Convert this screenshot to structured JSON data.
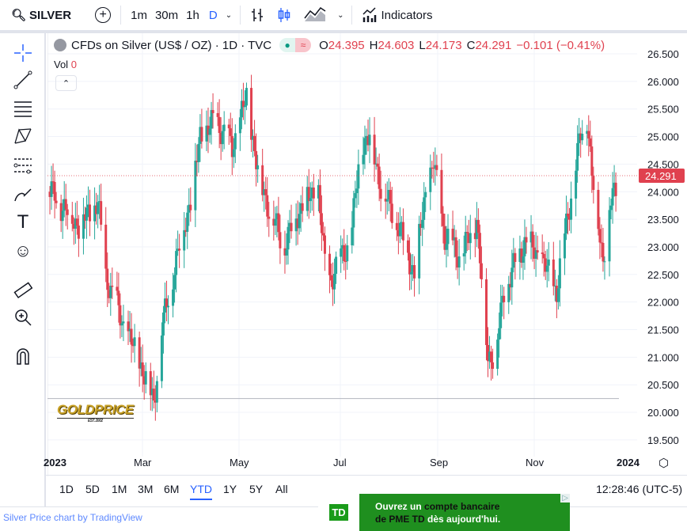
{
  "toolbar": {
    "symbol": "SILVER",
    "intervals": [
      "1m",
      "30m",
      "1h",
      "D"
    ],
    "active_interval": "D",
    "indicators_label": "Indicators"
  },
  "legend": {
    "title": "CFDs on Silver (US$ / OZ) · 1D · TVC",
    "o_label": "O",
    "o": "24.395",
    "h_label": "H",
    "h": "24.603",
    "l_label": "L",
    "l": "24.173",
    "c_label": "C",
    "c": "24.291",
    "change": "−0.101 (−0.41%)",
    "vol_label": "Vol",
    "vol": "0"
  },
  "price_axis": {
    "ticks": [
      "26.500",
      "26.000",
      "25.500",
      "25.000",
      "24.500",
      "24.000",
      "23.500",
      "23.000",
      "22.500",
      "22.000",
      "21.500",
      "21.000",
      "20.500",
      "20.000",
      "19.500"
    ],
    "last_price": "24.291"
  },
  "time_axis": {
    "labels": [
      "2023",
      "Mar",
      "May",
      "Jul",
      "Sep",
      "Nov",
      "2024"
    ]
  },
  "ranges": [
    "1D",
    "5D",
    "1M",
    "3M",
    "6M",
    "YTD",
    "1Y",
    "5Y",
    "All"
  ],
  "active_range": "YTD",
  "clock": "12:28:46 (UTC-5)",
  "footer": "Silver Price chart by TradingView",
  "watermark": "GOLDPRICE",
  "ad": {
    "logo": "TD",
    "line1a": "Ouvrez un ",
    "line1b": "compte bancaire",
    "line2a": "de PME TD",
    "line2b": " dès aujourd'hui."
  },
  "colors": {
    "up": "#26a69a",
    "down": "#e0414f",
    "accent": "#2962ff"
  },
  "chart_data": {
    "type": "candlestick",
    "ylim": [
      19.5,
      26.5
    ],
    "grid": true,
    "last": {
      "open": 24.395,
      "high": 24.603,
      "low": 24.173,
      "close": 24.291
    },
    "approx_close_path": [
      [
        "2023-01-02",
        24.0
      ],
      [
        "2023-01-20",
        23.4
      ],
      [
        "2023-02-01",
        23.8
      ],
      [
        "2023-02-06",
        22.5
      ],
      [
        "2023-02-18",
        21.5
      ],
      [
        "2023-02-26",
        21.0
      ],
      [
        "2023-03-08",
        20.2
      ],
      [
        "2023-03-13",
        21.5
      ],
      [
        "2023-03-20",
        22.5
      ],
      [
        "2023-04-01",
        24.0
      ],
      [
        "2023-04-06",
        25.0
      ],
      [
        "2023-04-16",
        25.3
      ],
      [
        "2023-04-26",
        24.8
      ],
      [
        "2023-05-05",
        25.7
      ],
      [
        "2023-05-13",
        24.2
      ],
      [
        "2023-05-28",
        23.0
      ],
      [
        "2023-06-09",
        23.8
      ],
      [
        "2023-06-19",
        24.0
      ],
      [
        "2023-06-24",
        22.3
      ],
      [
        "2023-07-09",
        23.1
      ],
      [
        "2023-07-16",
        24.9
      ],
      [
        "2023-07-21",
        25.0
      ],
      [
        "2023-07-29",
        24.0
      ],
      [
        "2023-08-08",
        23.4
      ],
      [
        "2023-08-18",
        22.5
      ],
      [
        "2023-08-25",
        24.0
      ],
      [
        "2023-08-30",
        24.5
      ],
      [
        "2023-09-06",
        23.2
      ],
      [
        "2023-09-16",
        22.8
      ],
      [
        "2023-09-26",
        23.5
      ],
      [
        "2023-10-03",
        21.0
      ],
      [
        "2023-10-08",
        21.1
      ],
      [
        "2023-10-13",
        22.2
      ],
      [
        "2023-10-26",
        23.1
      ],
      [
        "2023-11-05",
        22.8
      ],
      [
        "2023-11-15",
        22.2
      ],
      [
        "2023-11-22",
        23.6
      ],
      [
        "2023-11-30",
        25.0
      ],
      [
        "2023-12-04",
        25.4
      ],
      [
        "2023-12-07",
        24.3
      ],
      [
        "2023-12-14",
        22.8
      ],
      [
        "2023-12-19",
        23.8
      ],
      [
        "2023-12-24",
        24.291
      ]
    ],
    "support_line": 20.25
  }
}
